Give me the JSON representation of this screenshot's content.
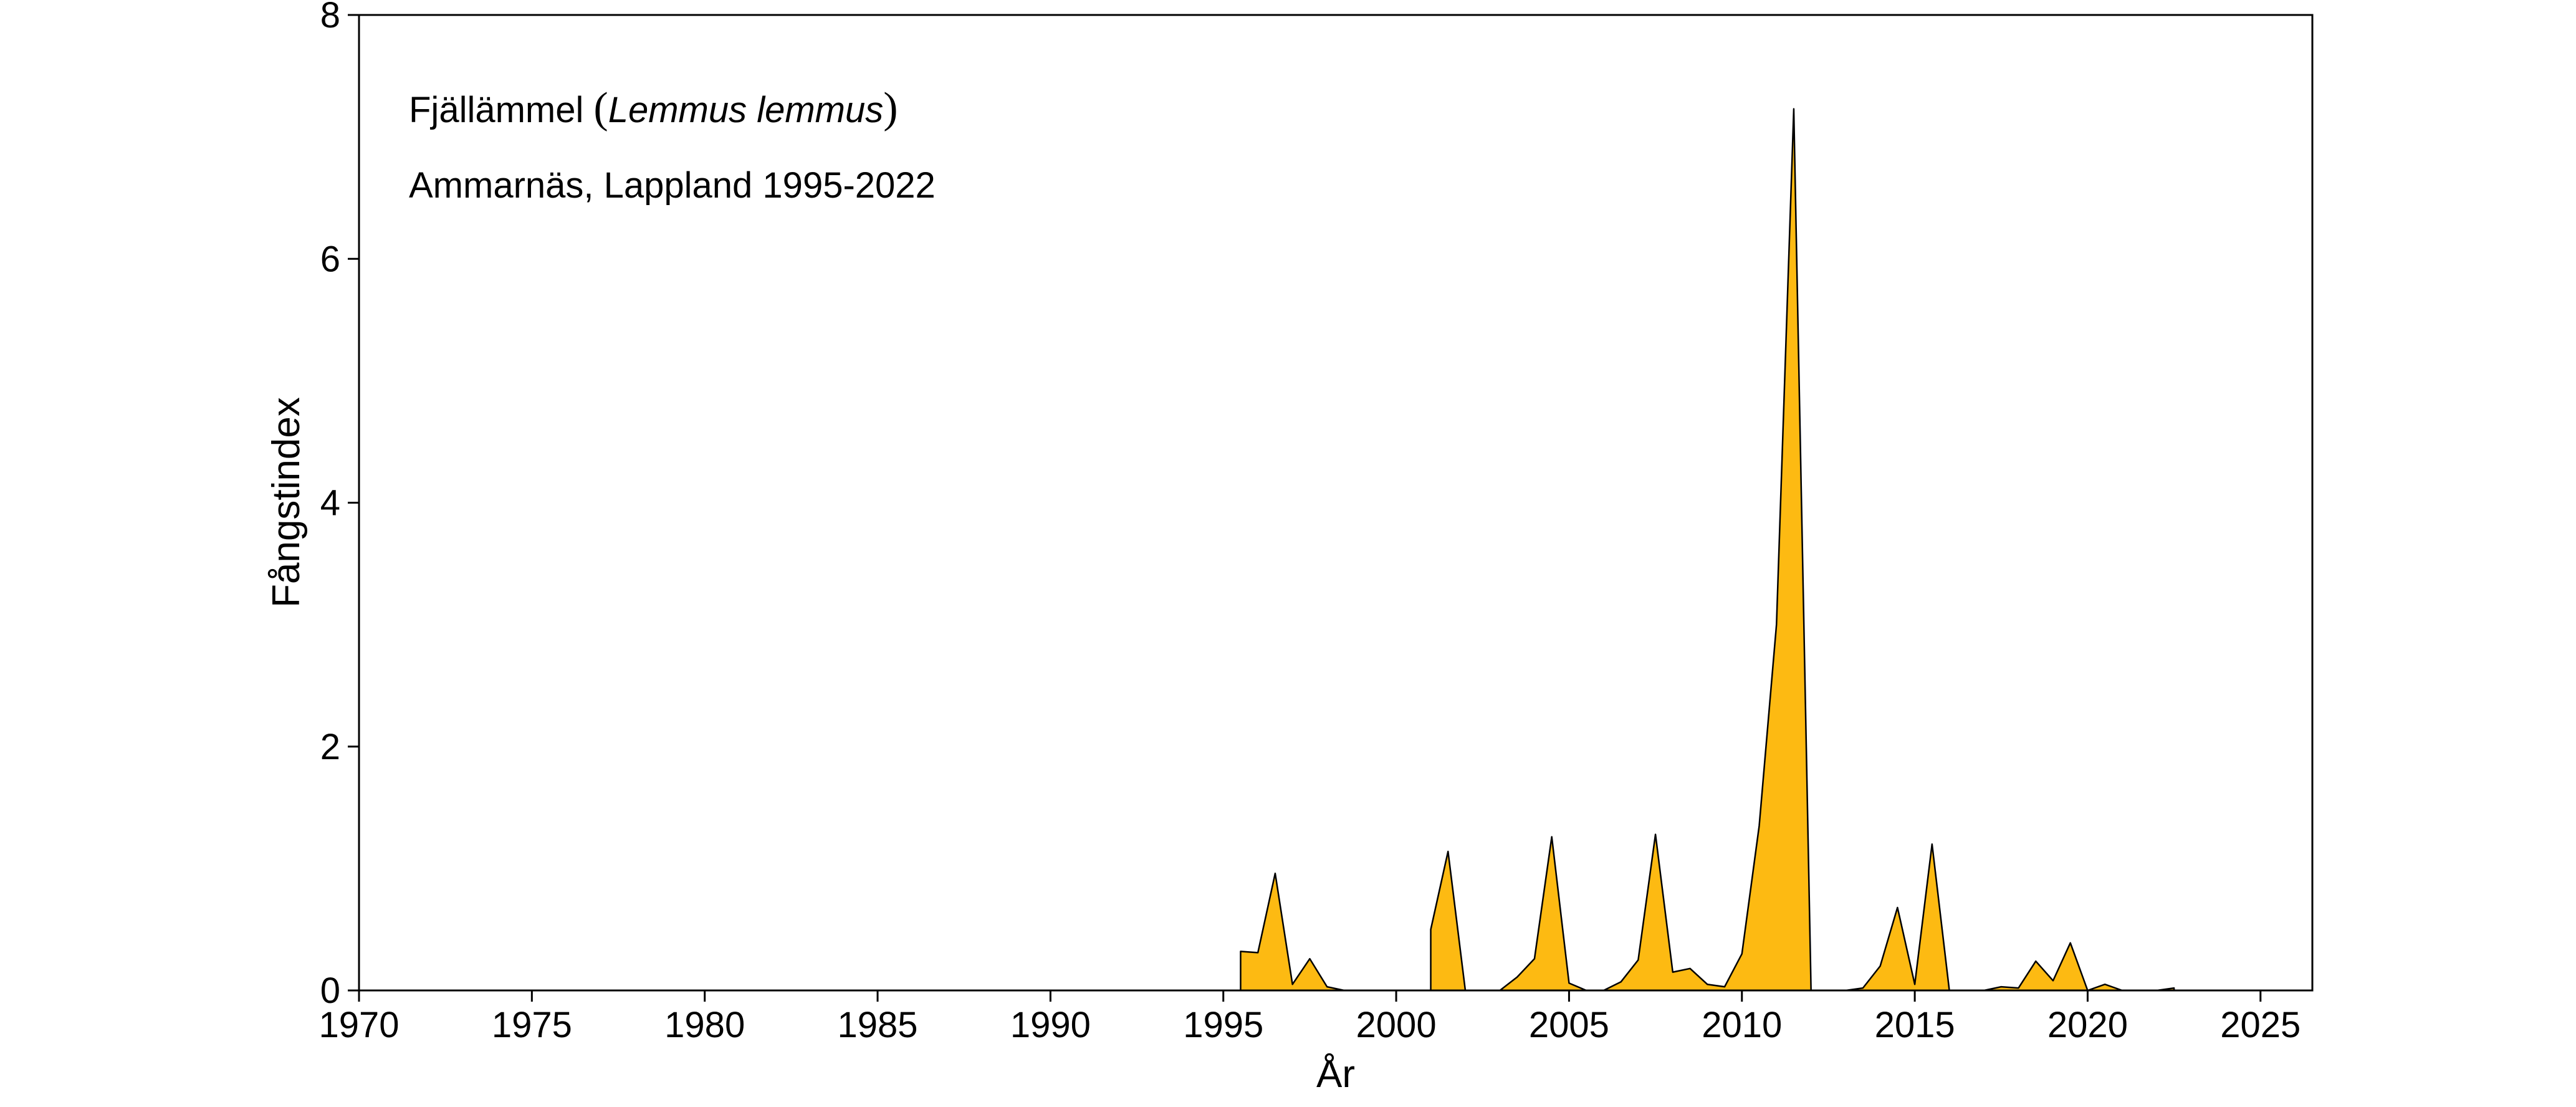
{
  "chart_data": {
    "type": "area",
    "title": "",
    "xlabel": "År",
    "ylabel": "Fångstindex",
    "xlim": [
      1970,
      2026.5
    ],
    "ylim": [
      0,
      8
    ],
    "xticks": [
      1970,
      1975,
      1980,
      1985,
      1990,
      1995,
      2000,
      2005,
      2010,
      2015,
      2020,
      2025
    ],
    "yticks": [
      0,
      2,
      4,
      6,
      8
    ],
    "grid": false,
    "legend": "none",
    "fill_color": "#FDBA12",
    "line_color": "#000000",
    "annotations": {
      "species_prefix": "Fjällämmel",
      "open_paren": "(",
      "latin_name": "Lemmus lemmus",
      "close_paren": ")",
      "site": "Ammarnäs, Lappland 1995-2022"
    },
    "segments": [
      {
        "x": [
          1995.5,
          1996.0,
          1996.5,
          1997.0,
          1997.5,
          1998.0,
          1998.5,
          1999.0,
          1999.5,
          2000.0,
          2000.5
        ],
        "y": [
          0.32,
          0.31,
          0.96,
          0.05,
          0.26,
          0.03,
          0.0,
          0.0,
          0.0,
          0.0,
          0.0
        ]
      },
      {
        "x": [
          2001.0,
          2001.5,
          2002.0,
          2002.5,
          2003.0,
          2003.5,
          2004.0,
          2004.5,
          2005.0,
          2005.5,
          2006.0,
          2006.5,
          2007.0,
          2007.5,
          2008.0,
          2008.5,
          2009.0,
          2009.5,
          2010.0,
          2010.5,
          2011.0,
          2011.5,
          2012.0
        ],
        "y": [
          0.5,
          1.14,
          0.0,
          0.0,
          0.0,
          0.11,
          0.26,
          1.26,
          0.06,
          0.0,
          0.0,
          0.07,
          0.25,
          1.28,
          0.15,
          0.18,
          0.05,
          0.03,
          0.3,
          1.35,
          3.0,
          7.23,
          0.0
        ]
      },
      {
        "x": [
          2013.0,
          2013.5,
          2014.0,
          2014.5,
          2015.0,
          2015.5,
          2016.0
        ],
        "y": [
          0.0,
          0.02,
          0.2,
          0.68,
          0.05,
          1.2,
          0.0
        ]
      },
      {
        "x": [
          2017.0,
          2017.5,
          2018.0,
          2018.5,
          2019.0,
          2019.5,
          2020.0,
          2020.5,
          2021.0,
          2021.5,
          2022.0,
          2022.5
        ],
        "y": [
          0.0,
          0.03,
          0.02,
          0.24,
          0.08,
          0.39,
          0.0,
          0.05,
          0.0,
          0.0,
          0.0,
          0.02
        ]
      }
    ]
  }
}
